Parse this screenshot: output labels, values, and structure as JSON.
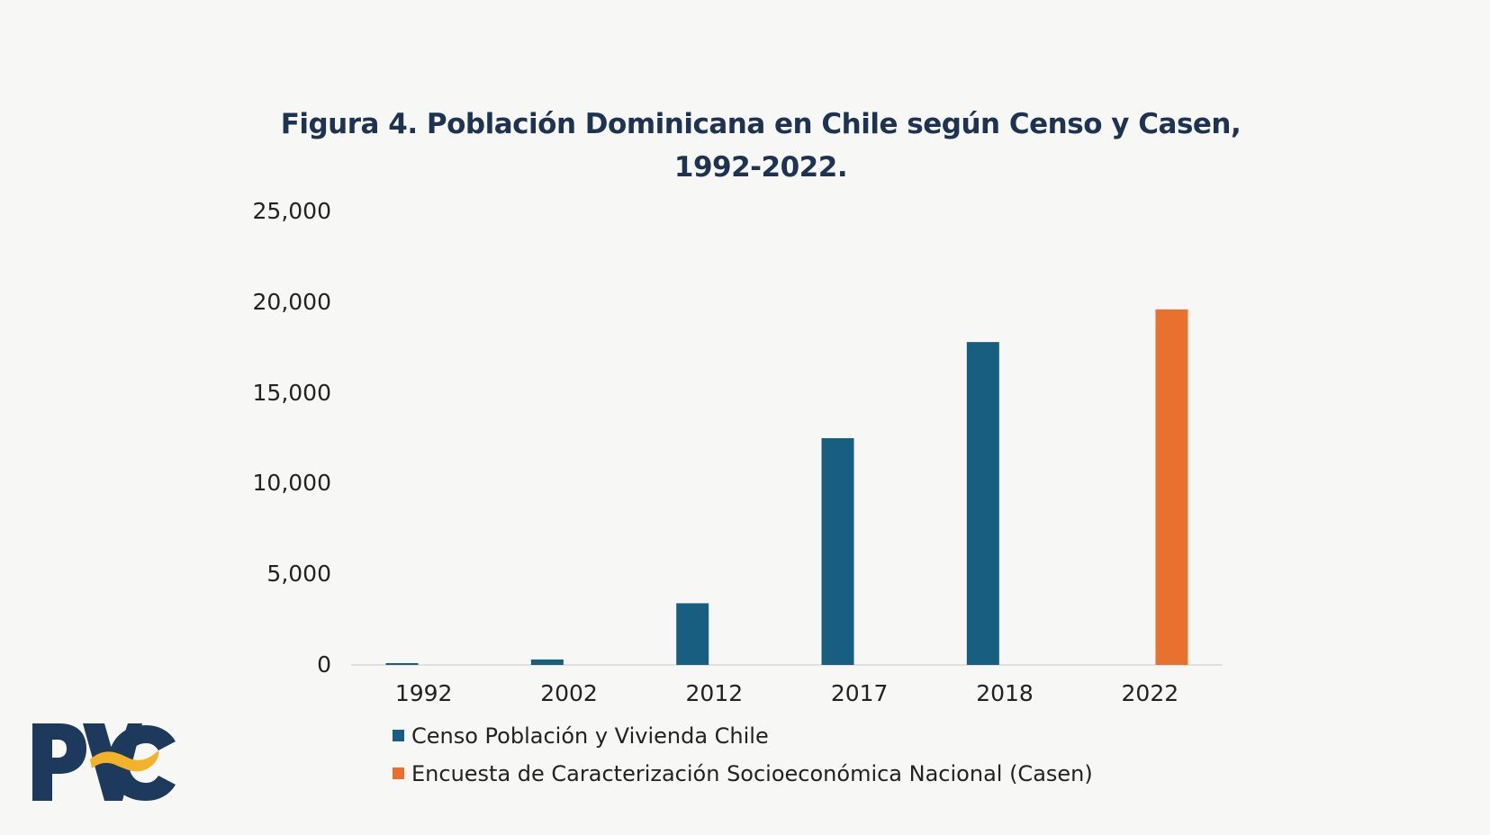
{
  "chart_data": {
    "type": "bar",
    "title_line1": "Figura 4. Población Dominicana en Chile según Censo y Casen,",
    "title_line2": "1992-2022.",
    "categories": [
      "1992",
      "2002",
      "2012",
      "2017",
      "2018",
      "2022"
    ],
    "series": [
      {
        "name": "Censo Población y Vivienda Chile",
        "color": "#175e80",
        "values": [
          100,
          300,
          3400,
          12500,
          17800,
          null
        ]
      },
      {
        "name": "Encuesta de Caracterización Socioeconómica Nacional (Casen)",
        "color": "#e8712f",
        "values": [
          null,
          null,
          null,
          null,
          null,
          19600
        ]
      }
    ],
    "yticks": [
      "25,000",
      "20,000",
      "15,000",
      "10,000",
      "5,000",
      "0"
    ],
    "ylim": [
      0,
      25000
    ],
    "xlabel": "",
    "ylabel": "",
    "legend_position": "bottom"
  },
  "logo": {
    "text": "PVC",
    "colors": {
      "primary": "#1d3a5c",
      "accent": "#f2b22a"
    }
  }
}
